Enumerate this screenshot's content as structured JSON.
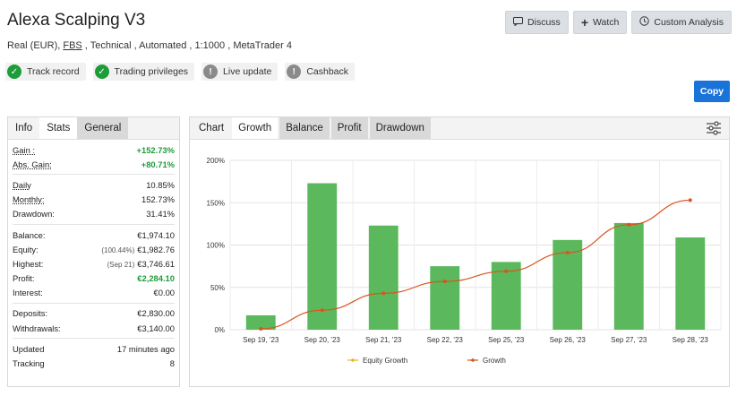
{
  "header": {
    "title": "Alexa Scalping V3",
    "subtitle_pre": "Real (EUR), ",
    "subtitle_link": "FBS",
    "subtitle_post": " , Technical , Automated , 1:1000 , MetaTrader 4"
  },
  "badges": [
    {
      "label": "Track record",
      "icon": "check-icon",
      "color": "#1d9c3a"
    },
    {
      "label": "Trading privileges",
      "icon": "check-icon",
      "color": "#1d9c3a"
    },
    {
      "label": "Live update",
      "icon": "exclamation-icon",
      "color": "#8a8a8a"
    },
    {
      "label": "Cashback",
      "icon": "exclamation-icon",
      "color": "#8a8a8a"
    }
  ],
  "actions": {
    "discuss": "Discuss",
    "watch": "Watch",
    "custom_analysis": "Custom Analysis",
    "copy": "Copy"
  },
  "left_tabs": [
    "Info",
    "Stats",
    "General"
  ],
  "stats": {
    "gain_label": "Gain :",
    "gain": "+152.73%",
    "abs_gain_label": "Abs. Gain:",
    "abs_gain": "+80.71%",
    "daily_label": "Daily",
    "daily": "10.85%",
    "monthly_label": "Monthly:",
    "monthly": "152.73%",
    "drawdown_label": "Drawdown:",
    "drawdown": "31.41%",
    "balance_label": "Balance:",
    "balance": "€1,974.10",
    "equity_label": "Equity:",
    "equity_pct": "(100.44%)",
    "equity": "€1,982.76",
    "highest_label": "Highest:",
    "highest_date": "(Sep 21)",
    "highest": "€3,746.61",
    "profit_label": "Profit:",
    "profit": "€2,284.10",
    "interest_label": "Interest:",
    "interest": "€0.00",
    "deposits_label": "Deposits:",
    "deposits": "€2,830.00",
    "withdrawals_label": "Withdrawals:",
    "withdrawals": "€3,140.00",
    "updated_label": "Updated",
    "updated": "17 minutes ago",
    "tracking_label": "Tracking",
    "tracking": "8"
  },
  "right_tabs": [
    "Chart",
    "Growth",
    "Balance",
    "Profit",
    "Drawdown"
  ],
  "colors": {
    "bar": "#5cb85c",
    "growth_line": "#d9541e",
    "equity_line": "#e8b230"
  },
  "chart_data": {
    "type": "bar",
    "categories": [
      "Sep 19, '23",
      "Sep 20, '23",
      "Sep 21, '23",
      "Sep 22, '23",
      "Sep 25, '23",
      "Sep 26, '23",
      "Sep 27, '23",
      "Sep 28, '23"
    ],
    "series": [
      {
        "kind": "bar",
        "values": [
          17,
          173,
          123,
          75,
          80,
          106,
          126,
          109
        ]
      },
      {
        "name": "Growth",
        "kind": "line",
        "values": [
          1,
          23,
          43,
          57,
          69,
          91,
          124,
          153
        ]
      }
    ],
    "legend": [
      "Equity Growth",
      "Growth"
    ],
    "yticks": [
      "0%",
      "50%",
      "100%",
      "150%",
      "200%"
    ],
    "ylim": [
      0,
      200
    ],
    "grid": true,
    "legend_position": "bottom-center"
  }
}
